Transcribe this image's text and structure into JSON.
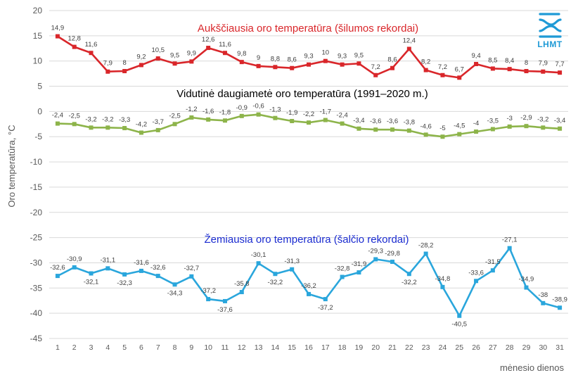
{
  "chart_data": {
    "type": "line",
    "x": [
      1,
      2,
      3,
      4,
      5,
      6,
      7,
      8,
      9,
      10,
      11,
      12,
      13,
      14,
      15,
      16,
      17,
      18,
      19,
      20,
      21,
      22,
      23,
      24,
      25,
      26,
      27,
      28,
      29,
      30,
      31
    ],
    "xlabel": "mėnesio dienos",
    "ylabel": "Oro temperatūra, °C",
    "ylim": [
      -45,
      20
    ],
    "ytick_step": 5,
    "grid": true,
    "series": [
      {
        "name": "Aukščiausia oro temperatūra (šilumos rekordai)",
        "color": "#d9262a",
        "values": [
          14.9,
          12.8,
          11.6,
          7.9,
          8,
          9.2,
          10.5,
          9.5,
          9.9,
          12.6,
          11.6,
          9.8,
          9,
          8.8,
          8.6,
          9.3,
          10,
          9.3,
          9.5,
          7.2,
          8.6,
          12.4,
          8.2,
          7.2,
          6.7,
          9.4,
          8.5,
          8.4,
          8,
          7.9,
          7.7
        ],
        "labels": [
          "14,9",
          "12,8",
          "11,6",
          "7,9",
          "8",
          "9,2",
          "10,5",
          "9,5",
          "9,9",
          "12,6",
          "11,6",
          "9,8",
          "9",
          "8,8",
          "8,6",
          "9,3",
          "10",
          "9,3",
          "9,5",
          "7,2",
          "8,6",
          "12,4",
          "8,2",
          "7,2",
          "6,7",
          "9,4",
          "8,5",
          "8,4",
          "8",
          "7,9",
          "7,7"
        ]
      },
      {
        "name": "Vidutinė daugiametė oro temperatūra (1991–2020 m.)",
        "color": "#8db44a",
        "values": [
          -2.4,
          -2.5,
          -3.2,
          -3.2,
          -3.3,
          -4.2,
          -3.7,
          -2.5,
          -1.2,
          -1.6,
          -1.8,
          -0.9,
          -0.6,
          -1.3,
          -1.9,
          -2.2,
          -1.7,
          -2.4,
          -3.4,
          -3.6,
          -3.6,
          -3.8,
          -4.6,
          -5,
          -4.5,
          -4,
          -3.5,
          -3,
          -2.9,
          -3.2,
          -3.4
        ],
        "labels": [
          "-2,4",
          "-2,5",
          "-3,2",
          "-3,2",
          "-3,3",
          "-4,2",
          "-3,7",
          "-2,5",
          "-1,2",
          "-1,6",
          "-1,8",
          "-0,9",
          "-0,6",
          "-1,3",
          "-1,9",
          "-2,2",
          "-1,7",
          "-2,4",
          "-3,4",
          "-3,6",
          "-3,6",
          "-3,8",
          "-4,6",
          "-5",
          "-4,5",
          "-4",
          "-3,5",
          "-3",
          "-2,9",
          "-3,2",
          "-3,4"
        ]
      },
      {
        "name": "Žemiausia oro temperatūra (šalčio rekordai)",
        "color": "#2aa6dc",
        "values": [
          -32.6,
          -30.9,
          -32.1,
          -31.1,
          -32.3,
          -31.6,
          -32.6,
          -34.3,
          -32.7,
          -37.2,
          -37.6,
          -35.8,
          -30.1,
          -32.2,
          -31.3,
          -36.2,
          -37.2,
          -32.8,
          -31.9,
          -29.3,
          -29.8,
          -32.2,
          -28.2,
          -34.8,
          -40.5,
          -33.6,
          -31.5,
          -27.1,
          -34.9,
          -38,
          -38.9
        ],
        "labels": [
          "-32,6",
          "-30,9",
          "-32,1",
          "-31,1",
          "-32,3",
          "-31,6",
          "-32,6",
          "-34,3",
          "-32,7",
          "-37,2",
          "-37,6",
          "-35,8",
          "-30,1",
          "-32,2",
          "-31,3",
          "-36,2",
          "-37,2",
          "-32,8",
          "-31,9",
          "-29,3",
          "-29,8",
          "-32,2",
          "-28,2",
          "-34,8",
          "-40,5",
          "-33,6",
          "-31,5",
          "-27,1",
          "-34,9",
          "-38",
          "-38,9"
        ]
      }
    ]
  },
  "logo": {
    "text": "LHMT",
    "icon": "wave-logo-icon",
    "color": "#1f9ad6"
  }
}
